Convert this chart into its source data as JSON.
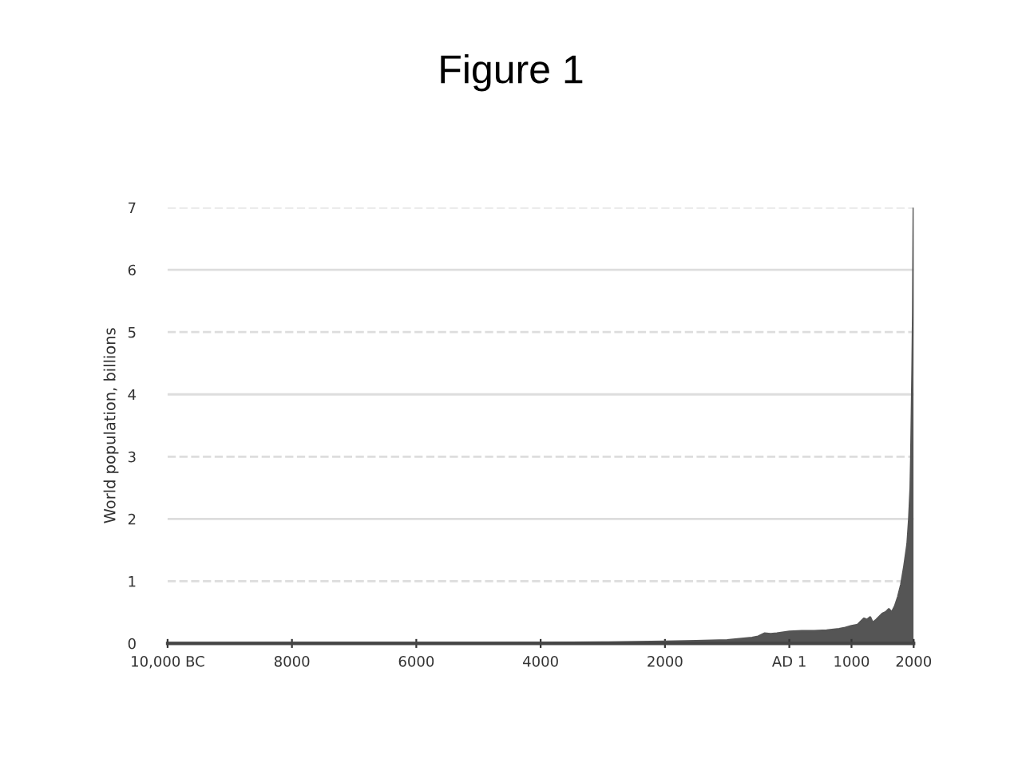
{
  "chart_data": {
    "type": "area",
    "title": "Figure 1",
    "ylabel": "World population, billions",
    "x": [
      -10000,
      -8000,
      -6000,
      -5000,
      -4000,
      -3000,
      -2000,
      -1500,
      -1000,
      -800,
      -600,
      -500,
      -400,
      -300,
      -200,
      1,
      200,
      400,
      600,
      800,
      900,
      1000,
      1100,
      1200,
      1250,
      1300,
      1340,
      1400,
      1500,
      1550,
      1600,
      1650,
      1700,
      1750,
      1800,
      1850,
      1900,
      1927,
      1950,
      1960,
      1970,
      1980,
      1990,
      2000
    ],
    "values": [
      0.004,
      0.005,
      0.006,
      0.008,
      0.01,
      0.015,
      0.03,
      0.04,
      0.05,
      0.07,
      0.09,
      0.11,
      0.16,
      0.15,
      0.16,
      0.19,
      0.2,
      0.2,
      0.21,
      0.23,
      0.25,
      0.28,
      0.3,
      0.4,
      0.38,
      0.42,
      0.33,
      0.38,
      0.48,
      0.5,
      0.55,
      0.5,
      0.6,
      0.75,
      0.95,
      1.25,
      1.6,
      2.0,
      2.5,
      3.0,
      3.7,
      4.4,
      5.3,
      7.0
    ],
    "color": "#555555",
    "xlim": [
      -10000,
      2000
    ],
    "xticks": [
      {
        "value": -10000,
        "label": "10,000 BC"
      },
      {
        "value": -8000,
        "label": "8000"
      },
      {
        "value": -6000,
        "label": "6000"
      },
      {
        "value": -4000,
        "label": "4000"
      },
      {
        "value": -2000,
        "label": "2000"
      },
      {
        "value": 0,
        "label": "AD 1"
      },
      1000,
      2000
    ],
    "ylim": [
      0,
      7
    ],
    "yticks": [
      0,
      1,
      2,
      3,
      4,
      5,
      6,
      7
    ],
    "grid": "y"
  }
}
